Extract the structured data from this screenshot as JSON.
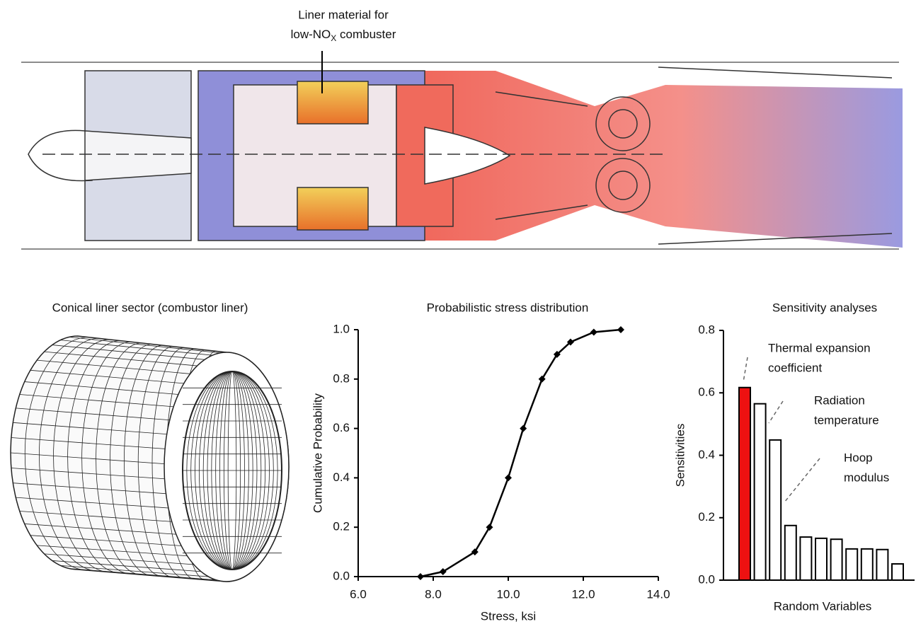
{
  "engine": {
    "annotation": {
      "line1": "Liner material for",
      "line2": {
        "before": "low-NO",
        "sub": "X",
        "after": " combuster"
      }
    }
  },
  "mesh": {
    "title": "Conical liner sector (combustor liner)"
  },
  "chart_data": [
    {
      "type": "line",
      "title": "Probabilistic stress distribution",
      "xlabel": "Stress, ksi",
      "ylabel": "Cumulative Probability",
      "x": [
        7.66,
        8.26,
        9.11,
        9.5,
        10.0,
        10.4,
        10.9,
        11.3,
        11.66,
        12.28,
        13.0
      ],
      "series": [
        {
          "name": "Cumulative Probability",
          "color": "#000000",
          "values": [
            0,
            0.02,
            0.1,
            0.2,
            0.4,
            0.6,
            0.8,
            0.9,
            0.95,
            0.99,
            1.0
          ]
        }
      ],
      "xlim": [
        6,
        14
      ],
      "xticks": [
        {
          "value": 6,
          "label": "6.0"
        },
        {
          "value": 8,
          "label": "8.0"
        },
        {
          "value": 10,
          "label": "10.0"
        },
        {
          "value": 12,
          "label": "12.0"
        },
        {
          "value": 14,
          "label": "14.0"
        }
      ],
      "ylim": [
        0,
        1
      ],
      "yticks": [
        {
          "value": 0,
          "label": "0.0"
        },
        {
          "value": 0.2,
          "label": "0.2"
        },
        {
          "value": 0.4,
          "label": "0.4"
        },
        {
          "value": 0.6,
          "label": "0.6"
        },
        {
          "value": 0.8,
          "label": "0.8"
        },
        {
          "value": 1,
          "label": "1.0"
        }
      ]
    },
    {
      "type": "bar",
      "title": "Sensitivity analyses",
      "xlabel": "Random Variables",
      "ylabel": "Sensitivities",
      "categories": [
        null,
        null,
        null,
        null,
        null,
        null,
        null,
        null,
        null,
        null,
        null
      ],
      "values": [
        0.617,
        0.565,
        0.449,
        0.175,
        0.138,
        0.134,
        0.131,
        0.1,
        0.1,
        0.098,
        0.052
      ],
      "colors": [
        "#ee1111",
        "#ffffff",
        "#ffffff",
        "#ffffff",
        "#ffffff",
        "#ffffff",
        "#ffffff",
        "#ffffff",
        "#ffffff",
        "#ffffff",
        "#ffffff"
      ],
      "annotations": [
        [
          "Thermal expansion",
          "coefficient"
        ],
        [
          "Radiation",
          "temperature"
        ],
        [
          "Hoop",
          "modulus"
        ]
      ],
      "ylim": [
        0,
        0.8
      ],
      "yticks": [
        {
          "value": 0,
          "label": "0.0"
        },
        {
          "value": 0.2,
          "label": "0.2"
        },
        {
          "value": 0.4,
          "label": "0.4"
        },
        {
          "value": 0.6,
          "label": "0.6"
        },
        {
          "value": 0.8,
          "label": "0.8"
        }
      ]
    }
  ]
}
